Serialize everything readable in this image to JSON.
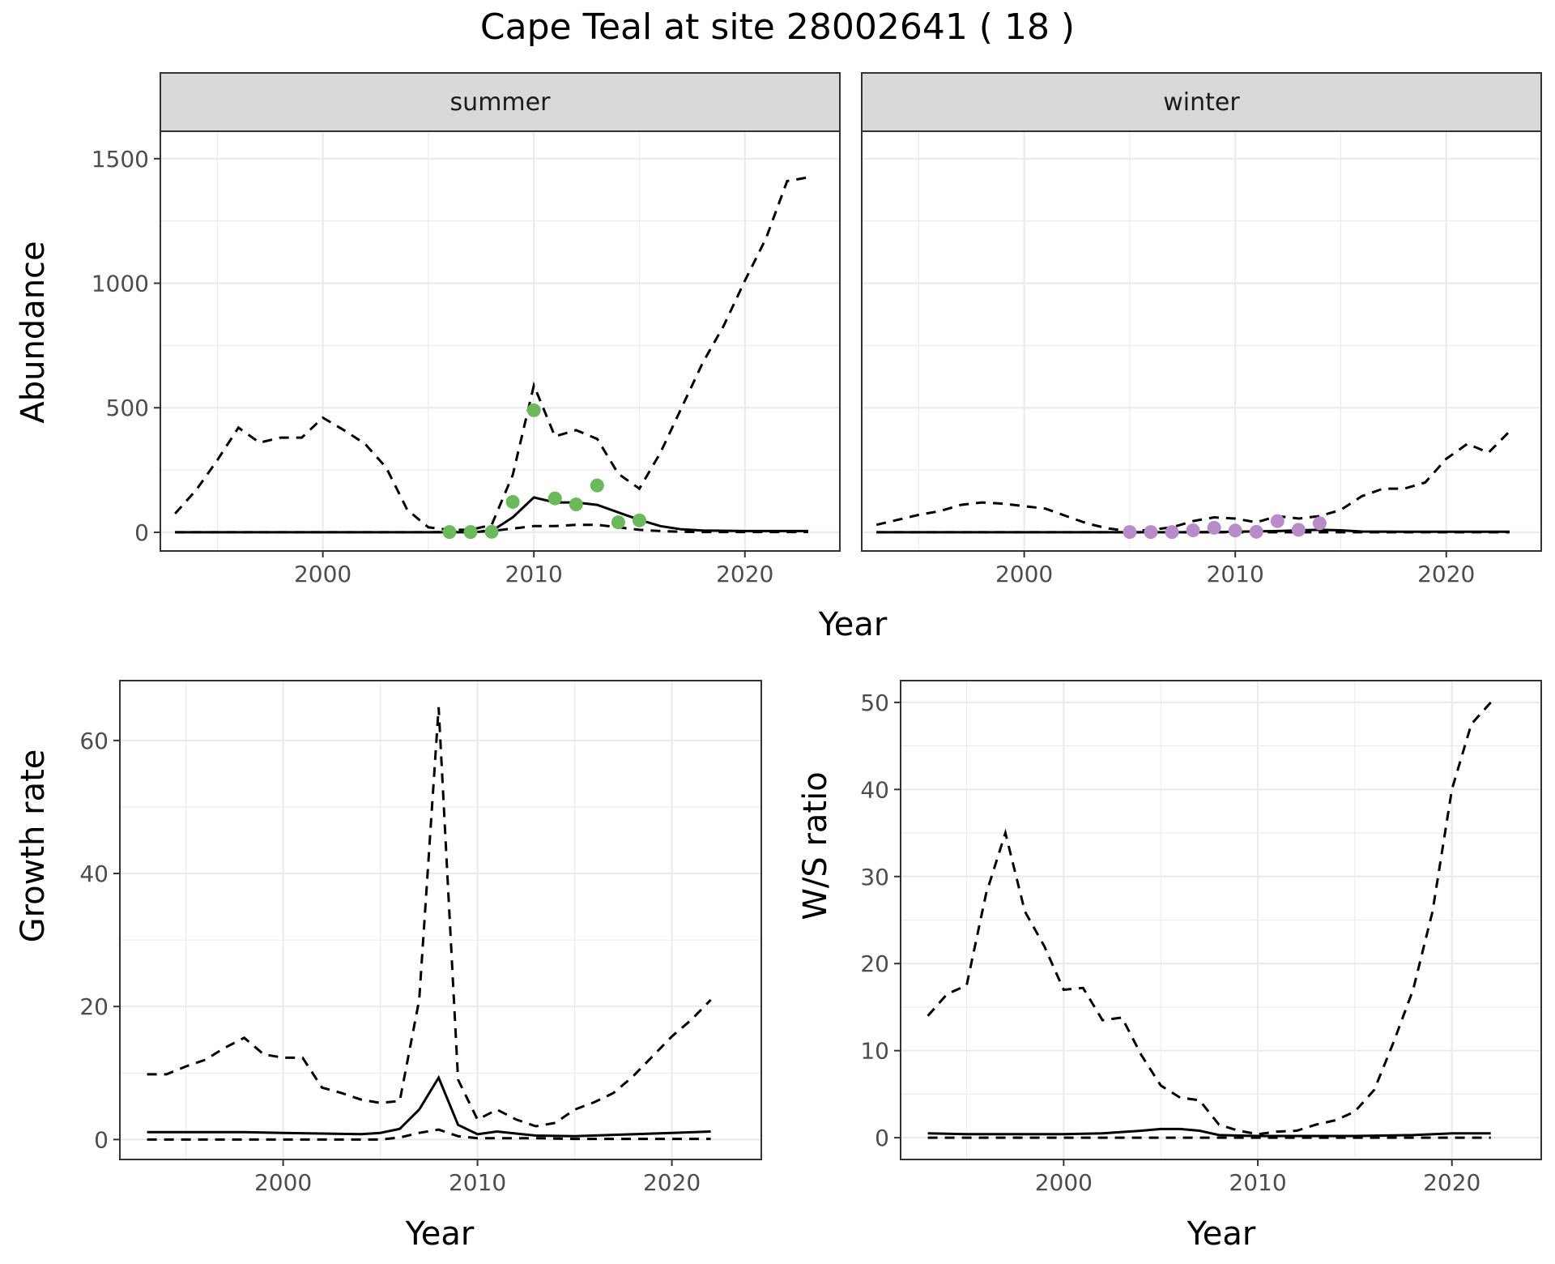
{
  "title": "Cape Teal at site 28002641 ( 18 )",
  "colors": {
    "summer_points": "#6cb85c",
    "winter_points": "#b88bc9",
    "lines": "#000000"
  },
  "chart_data": [
    {
      "id": "abundance",
      "type": "line",
      "facets": [
        "summer",
        "winter"
      ],
      "xlabel": "Year",
      "ylabel": "Abundance",
      "xlim": [
        1992.3,
        2024.5
      ],
      "ylim": [
        -75,
        1610
      ],
      "xticks": [
        2000,
        2010,
        2020
      ],
      "yticks": [
        0,
        500,
        1000,
        1500
      ],
      "grid": true,
      "panels": {
        "summer": {
          "estimate": [
            [
              1993,
              0
            ],
            [
              1995,
              0
            ],
            [
              2000,
              0
            ],
            [
              2005,
              0
            ],
            [
              2007,
              0
            ],
            [
              2008,
              5
            ],
            [
              2009,
              60
            ],
            [
              2010,
              140
            ],
            [
              2011,
              120
            ],
            [
              2012,
              120
            ],
            [
              2013,
              110
            ],
            [
              2014,
              80
            ],
            [
              2015,
              50
            ],
            [
              2016,
              25
            ],
            [
              2017,
              12
            ],
            [
              2018,
              7
            ],
            [
              2020,
              5
            ],
            [
              2023,
              5
            ]
          ],
          "lower": [
            [
              1993,
              0
            ],
            [
              2000,
              0
            ],
            [
              2005,
              0
            ],
            [
              2008,
              5
            ],
            [
              2009,
              15
            ],
            [
              2010,
              25
            ],
            [
              2011,
              25
            ],
            [
              2012,
              30
            ],
            [
              2013,
              30
            ],
            [
              2014,
              20
            ],
            [
              2015,
              10
            ],
            [
              2016,
              5
            ],
            [
              2017,
              2
            ],
            [
              2018,
              1
            ],
            [
              2023,
              1
            ]
          ],
          "upper": [
            [
              1993,
              75
            ],
            [
              1994,
              170
            ],
            [
              1995,
              290
            ],
            [
              1996,
              420
            ],
            [
              1997,
              360
            ],
            [
              1998,
              380
            ],
            [
              1999,
              380
            ],
            [
              2000,
              460
            ],
            [
              2001,
              410
            ],
            [
              2002,
              355
            ],
            [
              2003,
              260
            ],
            [
              2004,
              90
            ],
            [
              2005,
              20
            ],
            [
              2006,
              10
            ],
            [
              2007,
              10
            ],
            [
              2008,
              30
            ],
            [
              2009,
              230
            ],
            [
              2010,
              590
            ],
            [
              2011,
              385
            ],
            [
              2012,
              410
            ],
            [
              2013,
              375
            ],
            [
              2014,
              235
            ],
            [
              2015,
              175
            ],
            [
              2016,
              320
            ],
            [
              2017,
              500
            ],
            [
              2018,
              680
            ],
            [
              2019,
              830
            ],
            [
              2020,
              1010
            ],
            [
              2021,
              1180
            ],
            [
              2022,
              1410
            ],
            [
              2023,
              1425
            ]
          ],
          "points": [
            [
              2006,
              1
            ],
            [
              2007,
              1
            ],
            [
              2008,
              2
            ],
            [
              2009,
              122
            ],
            [
              2010,
              490
            ],
            [
              2011,
              136
            ],
            [
              2012,
              112
            ],
            [
              2013,
              188
            ],
            [
              2014,
              40
            ],
            [
              2015,
              48
            ]
          ]
        },
        "winter": {
          "estimate": [
            [
              1993,
              0
            ],
            [
              2000,
              0
            ],
            [
              2008,
              0
            ],
            [
              2010,
              2
            ],
            [
              2012,
              5
            ],
            [
              2013,
              8
            ],
            [
              2014,
              10
            ],
            [
              2015,
              8
            ],
            [
              2016,
              3
            ],
            [
              2018,
              2
            ],
            [
              2023,
              2
            ]
          ],
          "lower": [
            [
              1993,
              0
            ],
            [
              2023,
              0
            ]
          ],
          "upper": [
            [
              1993,
              30
            ],
            [
              1994,
              50
            ],
            [
              1995,
              70
            ],
            [
              1996,
              85
            ],
            [
              1997,
              110
            ],
            [
              1998,
              120
            ],
            [
              1999,
              115
            ],
            [
              2000,
              105
            ],
            [
              2001,
              95
            ],
            [
              2002,
              65
            ],
            [
              2003,
              35
            ],
            [
              2004,
              15
            ],
            [
              2005,
              5
            ],
            [
              2006,
              10
            ],
            [
              2007,
              20
            ],
            [
              2008,
              45
            ],
            [
              2009,
              60
            ],
            [
              2010,
              55
            ],
            [
              2011,
              40
            ],
            [
              2012,
              65
            ],
            [
              2013,
              55
            ],
            [
              2014,
              65
            ],
            [
              2015,
              90
            ],
            [
              2016,
              145
            ],
            [
              2017,
              175
            ],
            [
              2018,
              175
            ],
            [
              2019,
              200
            ],
            [
              2020,
              295
            ],
            [
              2021,
              355
            ],
            [
              2022,
              320
            ],
            [
              2023,
              405
            ]
          ],
          "points": [
            [
              2005,
              1
            ],
            [
              2006,
              1
            ],
            [
              2007,
              1
            ],
            [
              2008,
              8
            ],
            [
              2009,
              18
            ],
            [
              2010,
              7
            ],
            [
              2011,
              2
            ],
            [
              2012,
              45
            ],
            [
              2013,
              10
            ],
            [
              2014,
              36
            ]
          ]
        }
      }
    },
    {
      "id": "growth",
      "type": "line",
      "xlabel": "Year",
      "ylabel": "Growth rate",
      "xlim": [
        1991.6,
        2024.6
      ],
      "ylim": [
        -3,
        69
      ],
      "xticks": [
        2000,
        2010,
        2020
      ],
      "yticks": [
        0,
        20,
        40,
        60
      ],
      "grid": true,
      "estimate": [
        [
          1993,
          1.1
        ],
        [
          1995,
          1.1
        ],
        [
          1998,
          1.1
        ],
        [
          2000,
          1.0
        ],
        [
          2002,
          0.9
        ],
        [
          2004,
          0.8
        ],
        [
          2005,
          1.0
        ],
        [
          2006,
          1.6
        ],
        [
          2007,
          4.5
        ],
        [
          2008,
          9.3
        ],
        [
          2009,
          2.2
        ],
        [
          2010,
          0.8
        ],
        [
          2011,
          1.2
        ],
        [
          2013,
          0.6
        ],
        [
          2015,
          0.5
        ],
        [
          2017,
          0.7
        ],
        [
          2020,
          1.0
        ],
        [
          2022,
          1.2
        ]
      ],
      "lower": [
        [
          1993,
          0
        ],
        [
          2005,
          0
        ],
        [
          2006,
          0.3
        ],
        [
          2007,
          1.0
        ],
        [
          2008,
          1.5
        ],
        [
          2009,
          0.5
        ],
        [
          2010,
          0.2
        ],
        [
          2011,
          0.2
        ],
        [
          2013,
          0.2
        ],
        [
          2015,
          0.1
        ],
        [
          2022,
          0.1
        ]
      ],
      "upper": [
        [
          1993,
          9.8
        ],
        [
          1994,
          9.8
        ],
        [
          1995,
          11
        ],
        [
          1996,
          12
        ],
        [
          1997,
          13.8
        ],
        [
          1998,
          15.3
        ],
        [
          1999,
          12.8
        ],
        [
          2000,
          12.3
        ],
        [
          2001,
          12.3
        ],
        [
          2002,
          7.8
        ],
        [
          2003,
          7.0
        ],
        [
          2004,
          6.0
        ],
        [
          2005,
          5.5
        ],
        [
          2006,
          5.8
        ],
        [
          2007,
          21
        ],
        [
          2008,
          65
        ],
        [
          2009,
          9
        ],
        [
          2010,
          3.0
        ],
        [
          2011,
          4.5
        ],
        [
          2012,
          3.0
        ],
        [
          2013,
          2.0
        ],
        [
          2014,
          2.5
        ],
        [
          2015,
          4.5
        ],
        [
          2016,
          5.6
        ],
        [
          2017,
          7.0
        ],
        [
          2018,
          9.5
        ],
        [
          2019,
          12.5
        ],
        [
          2020,
          15.5
        ],
        [
          2021,
          18
        ],
        [
          2022,
          21
        ]
      ]
    },
    {
      "id": "ratio",
      "type": "line",
      "xlabel": "Year",
      "ylabel": "W/S ratio",
      "xlim": [
        1991.6,
        2024.6
      ],
      "ylim": [
        -2.5,
        52.5
      ],
      "xticks": [
        2000,
        2010,
        2020
      ],
      "yticks": [
        0,
        10,
        20,
        30,
        40,
        50
      ],
      "grid": true,
      "estimate": [
        [
          1993,
          0.5
        ],
        [
          1995,
          0.4
        ],
        [
          2000,
          0.4
        ],
        [
          2002,
          0.5
        ],
        [
          2004,
          0.8
        ],
        [
          2005,
          1.0
        ],
        [
          2006,
          1.0
        ],
        [
          2007,
          0.8
        ],
        [
          2008,
          0.3
        ],
        [
          2010,
          0.2
        ],
        [
          2012,
          0.2
        ],
        [
          2015,
          0.2
        ],
        [
          2018,
          0.3
        ],
        [
          2020,
          0.5
        ],
        [
          2022,
          0.5
        ]
      ],
      "lower": [
        [
          1993,
          0
        ],
        [
          2022,
          0
        ]
      ],
      "upper": [
        [
          1993,
          14
        ],
        [
          1994,
          16.5
        ],
        [
          1995,
          17.5
        ],
        [
          1996,
          28
        ],
        [
          1997,
          35
        ],
        [
          1998,
          26
        ],
        [
          1999,
          22
        ],
        [
          2000,
          17
        ],
        [
          2001,
          17.2
        ],
        [
          2002,
          13.5
        ],
        [
          2003,
          13.8
        ],
        [
          2004,
          9.5
        ],
        [
          2005,
          6
        ],
        [
          2006,
          4.6
        ],
        [
          2007,
          4.3
        ],
        [
          2008,
          1.5
        ],
        [
          2009,
          0.8
        ],
        [
          2010,
          0.4
        ],
        [
          2011,
          0.7
        ],
        [
          2012,
          0.8
        ],
        [
          2013,
          1.5
        ],
        [
          2014,
          2.0
        ],
        [
          2015,
          3.0
        ],
        [
          2016,
          5.5
        ],
        [
          2017,
          11
        ],
        [
          2018,
          17
        ],
        [
          2019,
          26
        ],
        [
          2020,
          40
        ],
        [
          2021,
          47.5
        ],
        [
          2022,
          50
        ]
      ]
    }
  ]
}
